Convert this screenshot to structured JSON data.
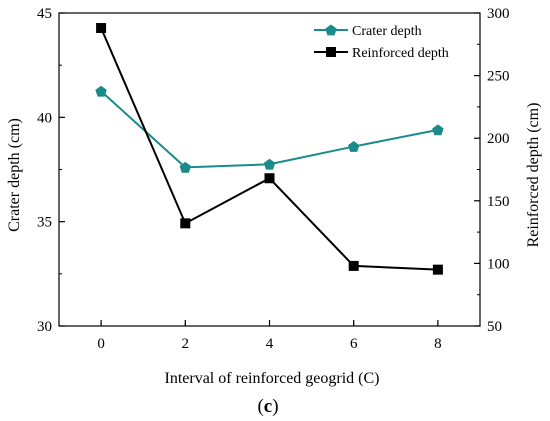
{
  "chart_data": {
    "type": "line",
    "panel_label_open": "(",
    "panel_label_letter": "c",
    "panel_label_close": ")",
    "xlabel": "Interval of reinforced geogrid (C)",
    "ylabel_left": "Crater depth (cm)",
    "ylabel_right": "Reinforced depth (cm)",
    "x": [
      0,
      2,
      4,
      6,
      8
    ],
    "xlim": [
      -1,
      9
    ],
    "xticks": [
      0,
      2,
      4,
      6,
      8
    ],
    "ylim_left": [
      30,
      45
    ],
    "yticks_left": [
      30,
      35,
      40,
      45
    ],
    "ylim_right": [
      50,
      300
    ],
    "yticks_right": [
      50,
      100,
      150,
      200,
      250,
      300
    ],
    "legend_position": "top-right",
    "grid": false,
    "series": [
      {
        "name": "Crater depth",
        "axis": "left",
        "color": "#1a8a8a",
        "marker": "pentagon",
        "values": [
          41.25,
          37.6,
          37.75,
          38.6,
          39.4
        ]
      },
      {
        "name": "Reinforced depth",
        "axis": "right",
        "color": "#000000",
        "marker": "square",
        "values": [
          288,
          132,
          168,
          98,
          95
        ]
      }
    ]
  }
}
